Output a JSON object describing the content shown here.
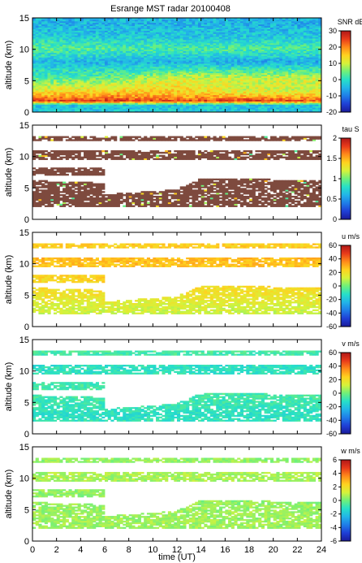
{
  "title": "Esrange MST radar 20100408",
  "x_axis": {
    "label": "time (UT)",
    "range": [
      0,
      24
    ],
    "ticks": [
      0,
      2,
      4,
      6,
      8,
      10,
      12,
      14,
      16,
      18,
      20,
      22,
      24
    ]
  },
  "y_axis": {
    "label": "altitude (km)",
    "range": [
      0,
      15
    ],
    "ticks": [
      0,
      5,
      10,
      15
    ]
  },
  "colormap": [
    "#1a1a9a",
    "#1f3fd6",
    "#1f7de8",
    "#22b5e8",
    "#27e0c8",
    "#6ff07a",
    "#d7f23a",
    "#ffd21f",
    "#ff8a1a",
    "#e83a1a",
    "#b01818"
  ],
  "chart_data": [
    {
      "type": "heatmap",
      "quantity": "SNR",
      "colorbar_label": "SNR dB",
      "clim": [
        -20,
        30
      ],
      "colorbar_ticks": [
        -20,
        -10,
        0,
        10,
        20,
        30
      ],
      "xlim": [
        0,
        24
      ],
      "ylim": [
        0,
        15
      ],
      "coverage": "full",
      "band_fields": [
        "time",
        "altitude",
        "value"
      ],
      "bands": [
        [
          0,
          1.2,
          -3
        ],
        [
          0,
          1.8,
          26
        ],
        [
          0,
          2.5,
          18
        ],
        [
          0,
          3.5,
          12
        ],
        [
          0,
          5.5,
          2
        ],
        [
          0,
          8.0,
          -4
        ],
        [
          0,
          10.2,
          4
        ],
        [
          0,
          12.0,
          -2
        ],
        [
          0,
          14.0,
          -5
        ],
        [
          6,
          1.2,
          -3
        ],
        [
          6,
          1.8,
          26
        ],
        [
          6,
          2.5,
          20
        ],
        [
          6,
          3.5,
          14
        ],
        [
          6,
          5.0,
          6
        ],
        [
          6,
          8.0,
          -5
        ],
        [
          6,
          10.2,
          3
        ],
        [
          6,
          12.0,
          -3
        ],
        [
          6,
          14.0,
          -5
        ],
        [
          12,
          1.2,
          -3
        ],
        [
          12,
          1.8,
          25
        ],
        [
          12,
          2.5,
          18
        ],
        [
          12,
          3.5,
          14
        ],
        [
          12,
          5.0,
          12
        ],
        [
          12,
          8.0,
          -5
        ],
        [
          12,
          10.2,
          2
        ],
        [
          12,
          12.0,
          -3
        ],
        [
          12,
          14.0,
          -5
        ],
        [
          18,
          1.2,
          -3
        ],
        [
          18,
          1.8,
          26
        ],
        [
          18,
          2.5,
          18
        ],
        [
          18,
          3.5,
          10
        ],
        [
          18,
          5.5,
          10
        ],
        [
          18,
          8.0,
          -6
        ],
        [
          18,
          10.2,
          3
        ],
        [
          18,
          12.0,
          -3
        ],
        [
          18,
          14.0,
          -5
        ],
        [
          24,
          1.2,
          -3
        ],
        [
          24,
          1.8,
          24
        ],
        [
          24,
          2.5,
          16
        ],
        [
          24,
          3.5,
          10
        ],
        [
          24,
          5.5,
          10
        ],
        [
          24,
          8.0,
          -6
        ],
        [
          24,
          10.2,
          3
        ],
        [
          24,
          12.0,
          -3
        ],
        [
          24,
          14.0,
          -5
        ]
      ]
    },
    {
      "type": "heatmap",
      "quantity": "tau",
      "colorbar_label": "tau S",
      "clim": [
        0,
        2
      ],
      "colorbar_ticks": [
        0,
        0.5,
        1,
        1.5,
        2
      ],
      "xlim": [
        0,
        24
      ],
      "ylim": [
        0,
        15
      ],
      "coverage": "echo-regions",
      "typical_value": 1.95,
      "speckle_value": 0.9
    },
    {
      "type": "heatmap",
      "quantity": "u",
      "colorbar_label": "u m/s",
      "clim": [
        -60,
        60
      ],
      "colorbar_ticks": [
        -60,
        -40,
        -20,
        0,
        20,
        40,
        60
      ],
      "xlim": [
        0,
        24
      ],
      "ylim": [
        0,
        15
      ],
      "coverage": "echo-regions",
      "profile": [
        [
          1,
          10
        ],
        [
          3,
          12
        ],
        [
          5,
          18
        ],
        [
          7,
          22
        ],
        [
          9,
          25
        ],
        [
          11,
          28
        ],
        [
          13,
          24
        ]
      ]
    },
    {
      "type": "heatmap",
      "quantity": "v",
      "colorbar_label": "v m/s",
      "clim": [
        -60,
        60
      ],
      "colorbar_ticks": [
        -60,
        -40,
        -20,
        0,
        20,
        40,
        60
      ],
      "xlim": [
        0,
        24
      ],
      "ylim": [
        0,
        15
      ],
      "coverage": "echo-regions",
      "profile": [
        [
          1,
          -8
        ],
        [
          3,
          -12
        ],
        [
          5,
          -8
        ],
        [
          7,
          -6
        ],
        [
          9,
          -10
        ],
        [
          11,
          -12
        ],
        [
          13,
          -6
        ]
      ]
    },
    {
      "type": "heatmap",
      "quantity": "w",
      "colorbar_label": "w m/s",
      "clim": [
        -6,
        6
      ],
      "colorbar_ticks": [
        -6,
        -4,
        -2,
        0,
        2,
        4,
        6
      ],
      "xlim": [
        0,
        24
      ],
      "ylim": [
        0,
        15
      ],
      "coverage": "echo-regions",
      "profile": [
        [
          1,
          0.4
        ],
        [
          3,
          0.6
        ],
        [
          5,
          0.5
        ],
        [
          7,
          0.3
        ],
        [
          9,
          0.6
        ],
        [
          11,
          0.7
        ],
        [
          13,
          0.4
        ]
      ]
    }
  ],
  "echo_regions": {
    "fields": [
      "t_start",
      "t_end",
      "alt_start",
      "alt_end",
      "alt_bottom",
      "alt_top"
    ],
    "regions": [
      [
        0,
        6,
        2,
        2,
        6.2,
        5.8
      ],
      [
        6,
        12,
        2,
        2,
        4.0,
        4.8
      ],
      [
        12,
        14,
        2,
        2,
        4.8,
        6.6
      ],
      [
        14,
        24,
        2,
        2,
        6.6,
        6.2
      ],
      [
        0,
        24,
        9.4,
        9.4,
        11.0,
        11.0
      ],
      [
        0,
        6,
        7.0,
        7.0,
        8.2,
        8.2
      ],
      [
        0,
        24,
        12.5,
        12.5,
        13.2,
        13.2
      ]
    ]
  }
}
